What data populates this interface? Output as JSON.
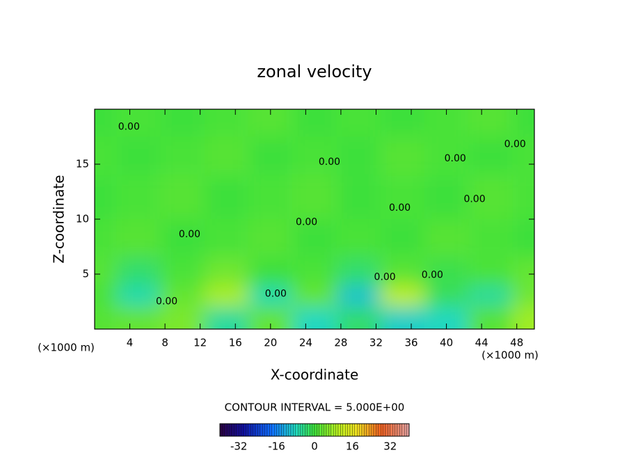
{
  "chart_data": {
    "type": "contour",
    "title": "zonal velocity",
    "x_label": "X-coordinate",
    "y_label": "Z-coordinate",
    "x_unit": "(×1000 m)",
    "y_unit": "(×1000 m)",
    "contour_interval": "CONTOUR INTERVAL = 5.000E+00",
    "xlim": [
      0,
      50
    ],
    "ylim": [
      0,
      20
    ],
    "xticks": [
      4,
      8,
      12,
      16,
      20,
      24,
      28,
      32,
      36,
      40,
      44,
      48
    ],
    "yticks": [
      5,
      10,
      15
    ],
    "x": [
      0,
      5,
      10,
      15,
      20,
      25,
      30,
      35,
      40,
      45,
      50
    ],
    "y": [
      1,
      3,
      5,
      8,
      12,
      16,
      19
    ],
    "z": [
      [
        2,
        3,
        5,
        -6,
        3,
        -8,
        -3,
        -9,
        -8,
        2,
        8
      ],
      [
        1,
        -7,
        3,
        9,
        -7,
        3,
        -10,
        11,
        -2,
        -6,
        4
      ],
      [
        2,
        -3,
        1,
        4,
        0,
        1,
        -3,
        2,
        -1,
        1,
        3
      ],
      [
        1,
        2,
        0,
        1,
        2,
        0,
        1,
        0,
        2,
        1,
        0
      ],
      [
        0,
        1,
        2,
        0,
        1,
        2,
        0,
        1,
        0,
        2,
        1
      ],
      [
        1,
        0,
        1,
        2,
        0,
        1,
        0,
        2,
        1,
        0,
        1
      ],
      [
        0,
        1,
        0,
        1,
        2,
        0,
        1,
        0,
        1,
        2,
        0
      ]
    ],
    "contour_labels": [
      {
        "label": "0.00",
        "x": 3.9,
        "y": 18.4
      },
      {
        "label": "0.00",
        "x": 26.7,
        "y": 15.2
      },
      {
        "label": "0.00",
        "x": 41.0,
        "y": 15.5
      },
      {
        "label": "0.00",
        "x": 47.8,
        "y": 16.8
      },
      {
        "label": "0.00",
        "x": 34.7,
        "y": 11.0
      },
      {
        "label": "0.00",
        "x": 43.2,
        "y": 11.8
      },
      {
        "label": "0.00",
        "x": 10.8,
        "y": 8.6
      },
      {
        "label": "0.00",
        "x": 24.1,
        "y": 9.7
      },
      {
        "label": "0.00",
        "x": 8.2,
        "y": 2.5
      },
      {
        "label": "0.00",
        "x": 20.6,
        "y": 3.2
      },
      {
        "label": "0.00",
        "x": 33.0,
        "y": 4.7
      },
      {
        "label": "0.00",
        "x": 38.4,
        "y": 4.9
      }
    ],
    "clim": [
      -40,
      40
    ],
    "colorbar_ticks": [
      -32,
      -16,
      0,
      16,
      32
    ],
    "colormap": [
      {
        "value": -40,
        "color": "#2a0040"
      },
      {
        "value": -30,
        "color": "#1010a0"
      },
      {
        "value": -18,
        "color": "#1070ff"
      },
      {
        "value": -8,
        "color": "#20d8c0"
      },
      {
        "value": 0,
        "color": "#3ee03a"
      },
      {
        "value": 10,
        "color": "#b8f020"
      },
      {
        "value": 18,
        "color": "#f0e020"
      },
      {
        "value": 28,
        "color": "#f06020"
      },
      {
        "value": 40,
        "color": "#e0a0a0"
      }
    ]
  }
}
